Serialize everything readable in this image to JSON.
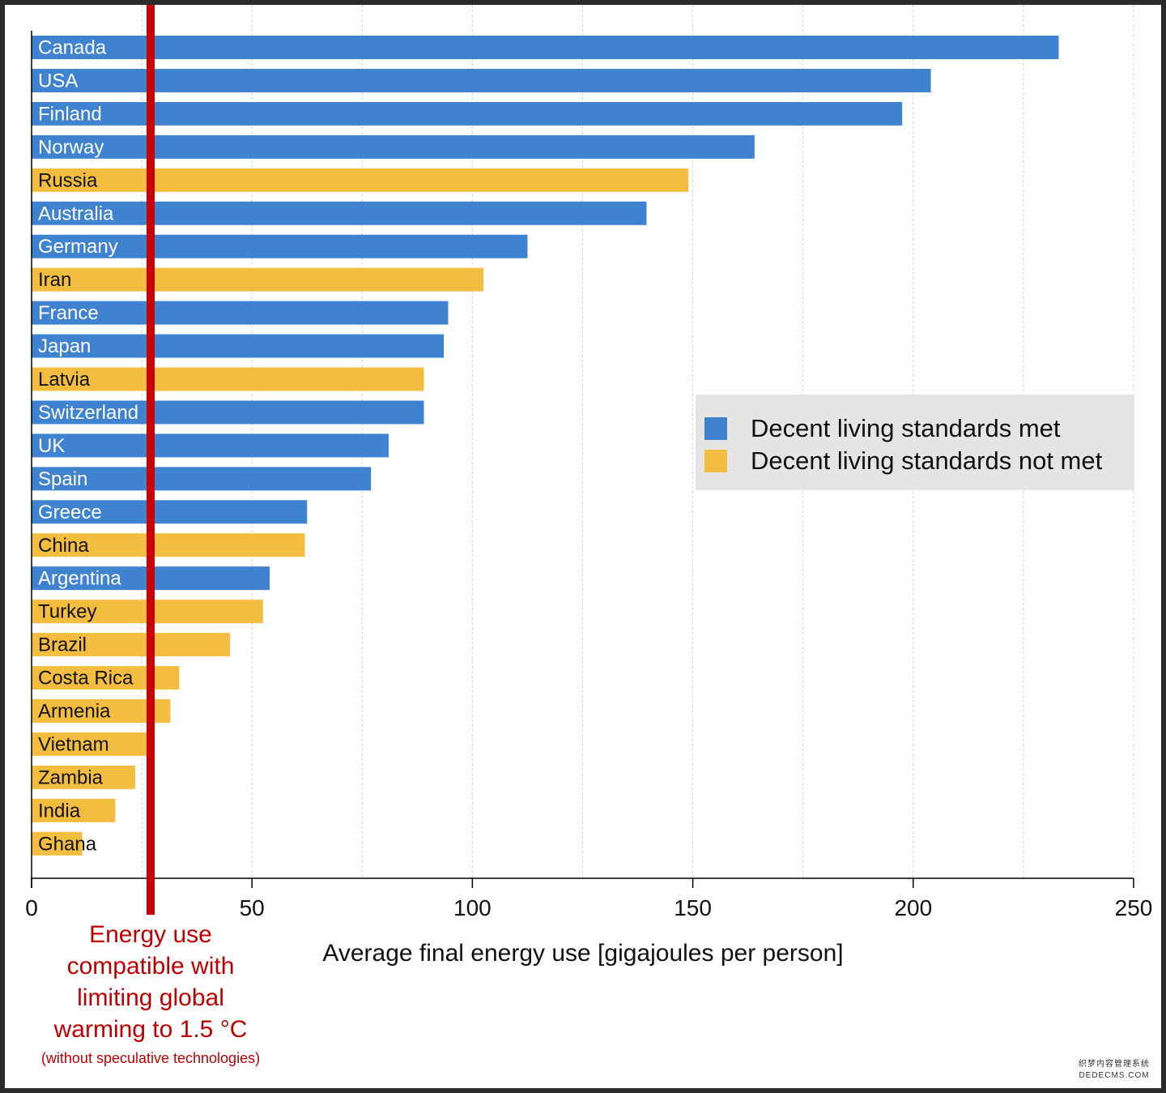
{
  "chart_data": {
    "type": "bar",
    "orientation": "horizontal",
    "categories": [
      "Canada",
      "USA",
      "Finland",
      "Norway",
      "Russia",
      "Australia",
      "Germany",
      "Iran",
      "France",
      "Japan",
      "Latvia",
      "Switzerland",
      "UK",
      "Spain",
      "Greece",
      "China",
      "Argentina",
      "Turkey",
      "Brazil",
      "Costa Rica",
      "Armenia",
      "Vietnam",
      "Zambia",
      "India",
      "Ghana"
    ],
    "values": [
      233,
      204,
      197.5,
      164,
      149,
      139.5,
      112.5,
      102.5,
      94.5,
      93.5,
      89,
      89,
      81,
      77,
      62.5,
      62,
      54,
      52.5,
      45,
      33.5,
      31.5,
      26.5,
      23.5,
      19,
      11.5
    ],
    "status": [
      "met",
      "met",
      "met",
      "met",
      "not_met",
      "met",
      "met",
      "not_met",
      "met",
      "met",
      "not_met",
      "met",
      "met",
      "met",
      "met",
      "not_met",
      "met",
      "not_met",
      "not_met",
      "not_met",
      "not_met",
      "not_met",
      "not_met",
      "not_met",
      "not_met"
    ],
    "series": [
      {
        "key": "met",
        "name": "Decent living standards met",
        "color": "#3f82cf"
      },
      {
        "key": "not_met",
        "name": "Decent living standards not met",
        "color": "#f3be40"
      }
    ],
    "xlabel": "Average final energy use [gigajoules per person]",
    "xlim": [
      0,
      250
    ],
    "xticks": [
      "0",
      "50",
      "100",
      "150",
      "200",
      "250"
    ],
    "xtick_values": [
      0,
      50,
      100,
      150,
      200,
      250
    ],
    "minor_grid_values": [
      25,
      75,
      125,
      175,
      225
    ],
    "grid": true,
    "legend_position": "right-middle",
    "reference_line": {
      "value": 27,
      "color": "#cc0000",
      "annotation": [
        "Energy use",
        "compatible with",
        "limiting global",
        "warming to 1.5 °C"
      ],
      "annotation_note": "(without speculative technologies)"
    }
  },
  "watermark": {
    "line1": "织梦内容管理系统",
    "line2": "DEDECMS.COM"
  }
}
